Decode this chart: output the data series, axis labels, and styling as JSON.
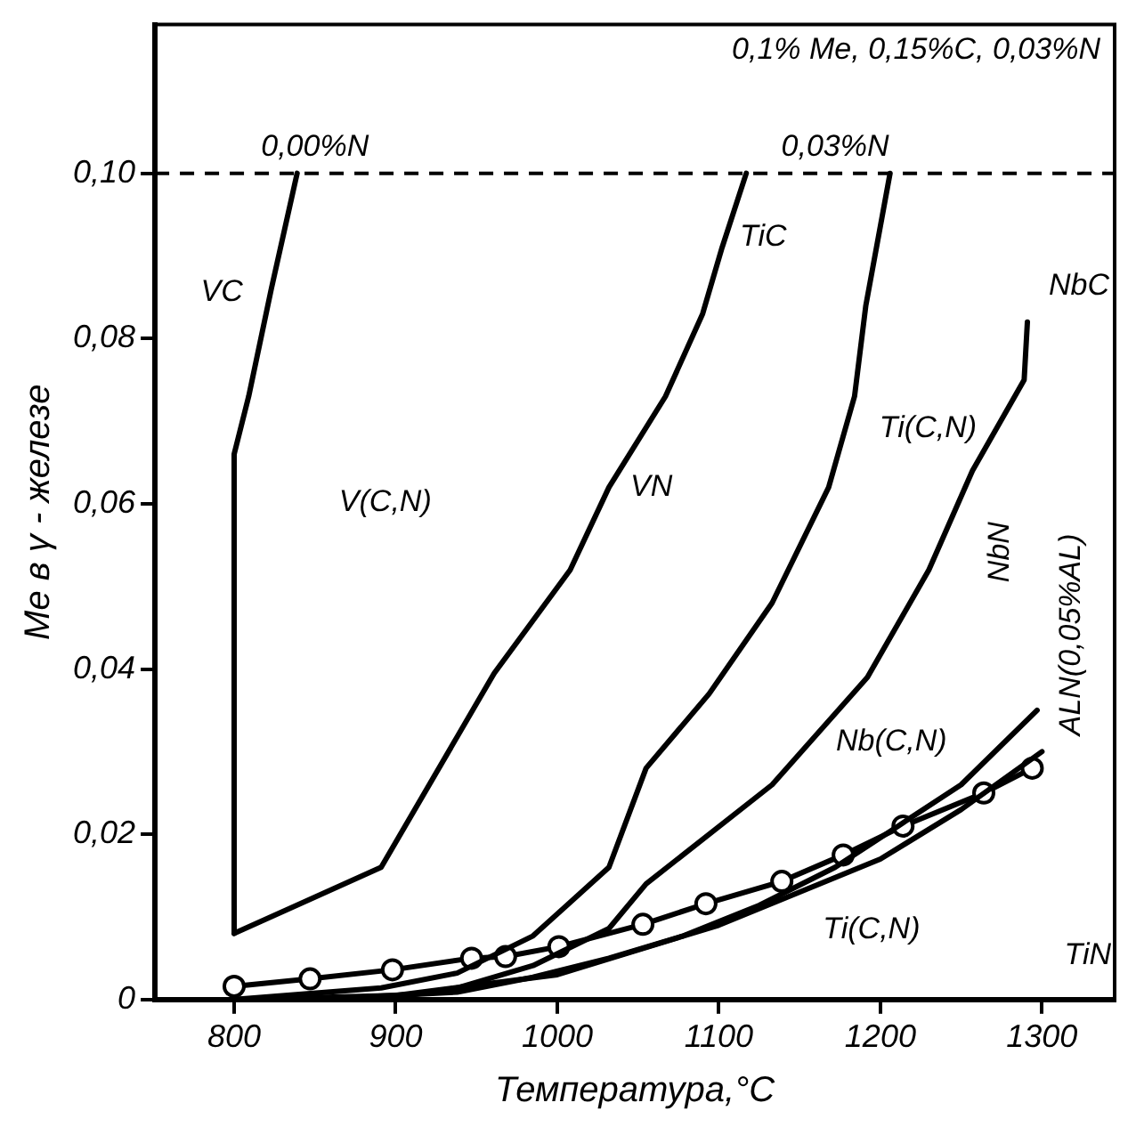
{
  "chart_data": {
    "type": "line",
    "xlabel": "Температура,°C",
    "ylabel": "Me в γ - железе",
    "xlim": [
      751,
      1345
    ],
    "xticks": [
      800,
      900,
      1000,
      1100,
      1200,
      1300
    ],
    "ylim": [
      0,
      0.118
    ],
    "yticks": [
      0,
      {
        "value": 0.02,
        "label": "0,02"
      },
      {
        "value": 0.04,
        "label": "0,04"
      },
      {
        "value": 0.06,
        "label": "0,06"
      },
      {
        "value": 0.08,
        "label": "0,08"
      },
      {
        "value": 0.1,
        "label": "0,10"
      }
    ],
    "grid": false,
    "legend": false,
    "marker": "none",
    "line_style": "solid",
    "series": [
      {
        "color": "#000000",
        "x": [
          800,
          800,
          809,
          823,
          839
        ],
        "values": [
          0.008,
          0.066,
          0.073,
          0.086,
          0.1
        ]
      },
      {
        "color": "#000000",
        "x": [
          800,
          891,
          961,
          1008,
          1032,
          1067,
          1090,
          1102,
          1117
        ],
        "values": [
          0.008,
          0.016,
          0.0395,
          0.052,
          0.062,
          0.073,
          0.083,
          0.091,
          0.1
        ]
      },
      {
        "color": "#000000",
        "x": [
          800,
          891,
          938,
          985,
          1032,
          1055,
          1094,
          1133,
          1168,
          1184,
          1191,
          1206
        ],
        "values": [
          0,
          0.0014,
          0.0032,
          0.0077,
          0.016,
          0.028,
          0.037,
          0.048,
          0.062,
          0.073,
          0.084,
          0.1
        ]
      },
      {
        "color": "#000000",
        "x": [
          891,
          938,
          985,
          1032,
          1055,
          1133,
          1192,
          1230,
          1257,
          1289,
          1291
        ],
        "values": [
          0,
          0.0014,
          0.0041,
          0.0086,
          0.014,
          0.026,
          0.039,
          0.052,
          0.064,
          0.075,
          0.082
        ]
      },
      {
        "color": "#000000",
        "x": [
          850,
          938,
          985,
          1032,
          1078,
          1125,
          1172,
          1211,
          1250,
          1297
        ],
        "values": [
          0,
          0.0009,
          0.0027,
          0.005,
          0.0077,
          0.0114,
          0.016,
          0.021,
          0.026,
          0.035
        ]
      },
      {
        "color": "#000000",
        "x": [
          800,
          900,
          1000,
          1100,
          1200,
          1250,
          1300
        ],
        "values": [
          0,
          0.0005,
          0.003,
          0.009,
          0.017,
          0.023,
          0.03
        ]
      },
      {
        "color": "#000000",
        "marker": "circle",
        "x": [
          800,
          847,
          898,
          947,
          968,
          1001,
          1053,
          1092,
          1139,
          1177,
          1214,
          1264,
          1294
        ],
        "values": [
          0.0016,
          0.0025,
          0.0036,
          0.005,
          0.0052,
          0.0064,
          0.0091,
          0.0116,
          0.0143,
          0.0175,
          0.021,
          0.025,
          0.028
        ]
      }
    ],
    "ref_lines": [
      {
        "axis": "y",
        "value": 0.1,
        "color": "#000000",
        "line_style": "dashed"
      }
    ],
    "annotations": [
      "0,1% Me, 0,15%C, 0,03%N",
      {
        "text": "0,00%N",
        "x": 850,
        "y": 0.1
      },
      {
        "text": "0,03%N",
        "x": 1172,
        "y": 0.1
      },
      {
        "text": "VC",
        "x": 823,
        "y": 0.086
      },
      {
        "text": "TiC",
        "x": 1102,
        "y": 0.091
      },
      "V(C,N)",
      {
        "text": "VN",
        "x": 1032,
        "y": 0.062
      },
      {
        "text": "Ti(C,N)",
        "x": 1184,
        "y": 0.073
      },
      {
        "text": "NbC",
        "x": 1291,
        "y": 0.082
      },
      {
        "text": "NbN",
        "x": 1230,
        "y": 0.052
      },
      {
        "text": "Nb(C,N)",
        "x": 1250,
        "y": 0.026
      },
      {
        "text": "ALN(0,05%AL)",
        "x": 1294,
        "y": 0.028
      },
      {
        "text": "Ti(C,N)",
        "x": 1200,
        "y": 0.017
      },
      "TiN"
    ]
  }
}
